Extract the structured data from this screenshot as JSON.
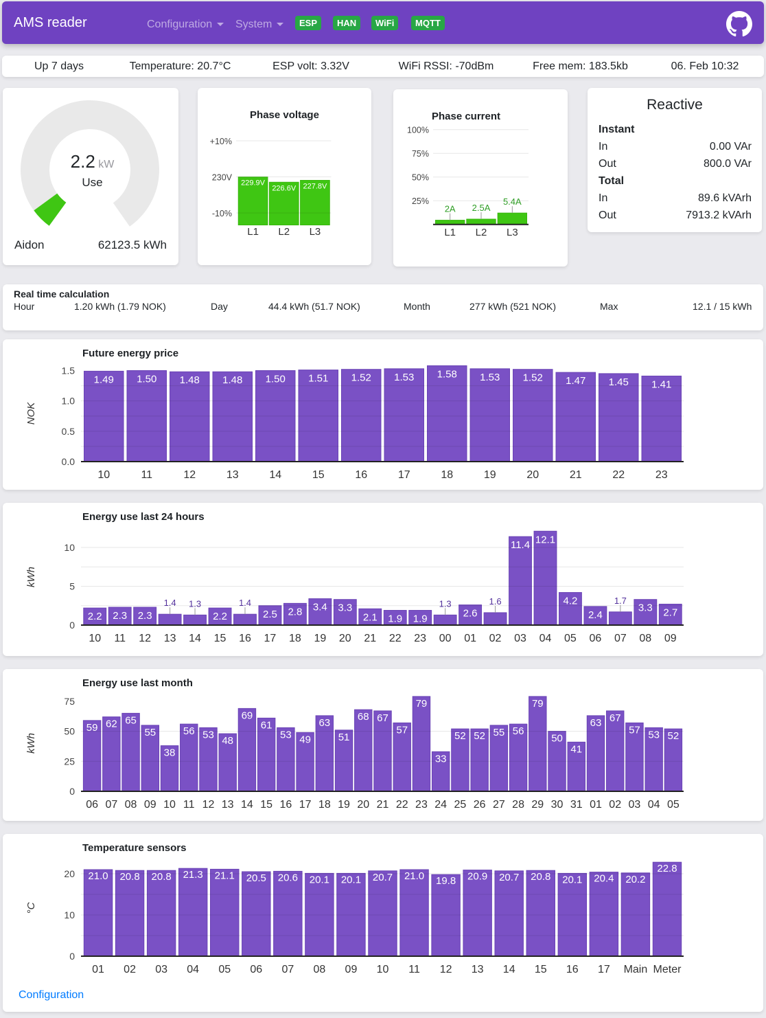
{
  "header": {
    "brand": "AMS reader",
    "menu": [
      {
        "label": "Configuration"
      },
      {
        "label": "System"
      }
    ],
    "badges": [
      {
        "label": "ESP"
      },
      {
        "label": "HAN"
      },
      {
        "label": "WiFi"
      },
      {
        "label": "MQTT"
      }
    ],
    "colors": {
      "navbar": "#6f42c1",
      "badge": "#28a745"
    }
  },
  "status_bar": {
    "items": [
      "Up 7 days",
      "Temperature: 20.7°C",
      "ESP volt: 3.32V",
      "WiFi RSSI: -70dBm",
      "Free mem: 183.5kb",
      "06. Feb 10:32"
    ]
  },
  "gauge_card": {
    "value": "2.2",
    "unit": "kW",
    "label": "Use",
    "value_num": 2.2,
    "meter": "Aidon",
    "accumulated": "62123.5 kWh",
    "used_color": "#3fc613",
    "rest_color": "#e9e9e9",
    "arc_start_deg": 234,
    "arc_end_deg": -55,
    "value_arc_deg": 18
  },
  "reactive_card": {
    "title": "Reactive",
    "sections": [
      {
        "label": "Instant",
        "rows": [
          {
            "label": "In",
            "value": "0.00 VAr"
          },
          {
            "label": "Out",
            "value": "800.0 VAr"
          }
        ]
      },
      {
        "label": "Total",
        "rows": [
          {
            "label": "In",
            "value": "89.6 kVArh"
          },
          {
            "label": "Out",
            "value": "7913.2 kVArh"
          }
        ]
      }
    ]
  },
  "realtime_card": {
    "title": "Real time calculation",
    "items": [
      {
        "label": "Hour",
        "value": "1.20 kWh (1.79 NOK)"
      },
      {
        "label": "Day",
        "value": "44.4 kWh (51.7 NOK)"
      },
      {
        "label": "Month",
        "value": "277 kWh (521 NOK)"
      },
      {
        "label": "Max",
        "value": "12.1 / 15 kWh"
      }
    ]
  },
  "footer": {
    "link": "Configuration",
    "link_color": "#007bff"
  },
  "chart_colors": {
    "purple_bar": "#7a51c5",
    "purple_label_outside": "#53319c",
    "green_bar": "#3fc613",
    "green_label_outside": "#2f9e25",
    "callout_line": "#999999",
    "gridline": "rgba(0,0,0,0.095)",
    "axis": "#222222",
    "tick_text": "#444444",
    "bar_label_inside": "#ffffff"
  },
  "chart_data": [
    {
      "id": "voltage",
      "type": "bar",
      "title": "Phase voltage",
      "categories": [
        "L1",
        "L2",
        "L3"
      ],
      "values": [
        229.9,
        226.6,
        227.8
      ],
      "labels": [
        "229.9V",
        "226.6V",
        "227.8V"
      ],
      "unit": "V",
      "yticks": [
        "+10%",
        "230V",
        "-10%"
      ],
      "ylim": [
        200,
        255
      ],
      "ref": 230,
      "ref_pct": 10
    },
    {
      "id": "current",
      "type": "bar",
      "title": "Phase current",
      "categories": [
        "L1",
        "L2",
        "L3"
      ],
      "values": [
        2,
        2.5,
        5.4
      ],
      "labels": [
        "2A",
        "2.5A",
        "5.4A"
      ],
      "unit": "A",
      "yticks": [
        "25%",
        "50%",
        "75%",
        "100%"
      ],
      "ylim": [
        0,
        45
      ]
    },
    {
      "id": "price",
      "type": "bar",
      "title": "Future energy price",
      "xlabel": "",
      "ylabel": "NOK",
      "categories": [
        "10",
        "11",
        "12",
        "13",
        "14",
        "15",
        "16",
        "17",
        "18",
        "19",
        "20",
        "21",
        "22",
        "23"
      ],
      "values": [
        1.49,
        1.5,
        1.48,
        1.48,
        1.5,
        1.51,
        1.52,
        1.53,
        1.58,
        1.53,
        1.52,
        1.47,
        1.45,
        1.41
      ],
      "decimals": 2,
      "yticks": [
        0.0,
        0.5,
        1.0,
        1.5
      ],
      "grid_step": 0.25,
      "ylim": [
        0,
        1.61
      ]
    },
    {
      "id": "last24",
      "type": "bar",
      "title": "Energy use last 24 hours",
      "xlabel": "",
      "ylabel": "kWh",
      "categories": [
        "10",
        "11",
        "12",
        "13",
        "14",
        "15",
        "16",
        "17",
        "18",
        "19",
        "20",
        "21",
        "22",
        "23",
        "00",
        "01",
        "02",
        "03",
        "04",
        "05",
        "06",
        "07",
        "08",
        "09"
      ],
      "values": [
        2.2,
        2.3,
        2.3,
        1.4,
        1.3,
        2.2,
        1.4,
        2.5,
        2.8,
        3.4,
        3.3,
        2.1,
        1.9,
        1.9,
        1.3,
        2.6,
        1.6,
        11.4,
        12.1,
        4.2,
        2.4,
        1.7,
        3.3,
        2.7
      ],
      "decimals": 1,
      "yticks": [
        0,
        5,
        10
      ],
      "grid_step": 2.5,
      "ylim": [
        0,
        12.6
      ]
    },
    {
      "id": "month",
      "type": "bar",
      "title": "Energy use last month",
      "xlabel": "",
      "ylabel": "kWh",
      "categories": [
        "06",
        "07",
        "08",
        "09",
        "10",
        "11",
        "12",
        "13",
        "14",
        "15",
        "16",
        "17",
        "18",
        "19",
        "20",
        "21",
        "22",
        "23",
        "24",
        "25",
        "26",
        "27",
        "28",
        "29",
        "30",
        "31",
        "01",
        "02",
        "03",
        "04",
        "05"
      ],
      "values": [
        59,
        62,
        65,
        55,
        38,
        56,
        53,
        48,
        69,
        61,
        53,
        49,
        63,
        51,
        68,
        67,
        57,
        79,
        33,
        52,
        52,
        55,
        56,
        79,
        50,
        41,
        63,
        67,
        57,
        53,
        52
      ],
      "decimals": 0,
      "yticks": [
        0,
        25,
        50,
        75
      ],
      "grid_step": 25,
      "ylim": [
        0,
        84
      ]
    },
    {
      "id": "temps",
      "type": "bar",
      "title": "Temperature sensors",
      "xlabel": "",
      "ylabel": "°C",
      "categories": [
        "01",
        "02",
        "03",
        "04",
        "05",
        "06",
        "07",
        "08",
        "09",
        "10",
        "11",
        "12",
        "13",
        "14",
        "15",
        "16",
        "17",
        "Main",
        "Meter"
      ],
      "values": [
        21.0,
        20.8,
        20.8,
        21.3,
        21.1,
        20.5,
        20.6,
        20.1,
        20.1,
        20.7,
        21.0,
        19.8,
        20.9,
        20.7,
        20.8,
        20.1,
        20.4,
        20.2,
        22.8
      ],
      "decimals": 1,
      "yticks": [
        0,
        10,
        20
      ],
      "grid_step": 5,
      "ylim": [
        0,
        24
      ]
    }
  ]
}
